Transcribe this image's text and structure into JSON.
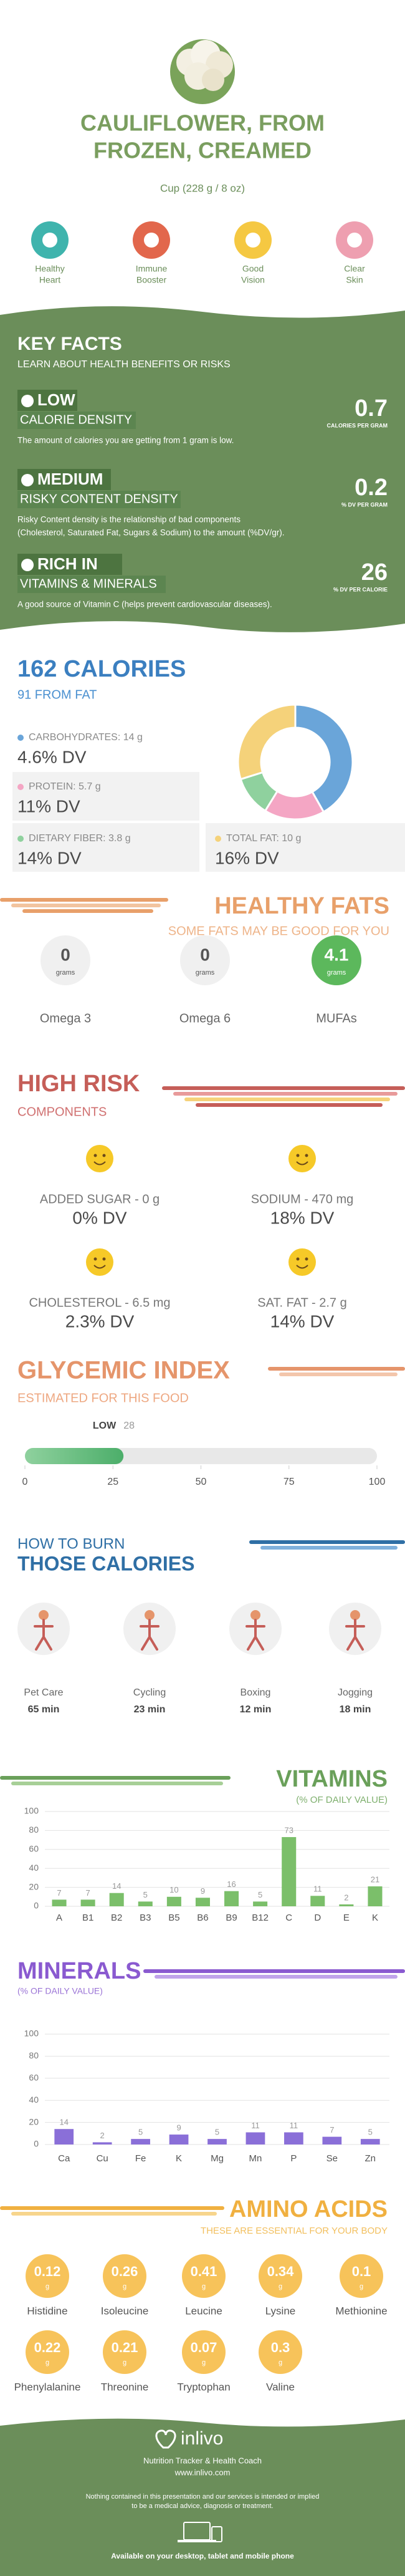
{
  "header": {
    "title": [
      "CAULIFLOWER, FROM",
      "FROZEN, CREAMED"
    ],
    "serving": "Cup (228 g / 8 oz)"
  },
  "benefits": [
    [
      "Healthy",
      "Heart"
    ],
    [
      "Immune",
      "Booster"
    ],
    [
      "Good",
      "Vision"
    ],
    [
      "Clear",
      "Skin"
    ]
  ],
  "key_facts": {
    "title": "KEY FACTS",
    "subtitle": "LEARN ABOUT HEALTH BENEFITS OR RISKS",
    "items": [
      {
        "level": "LOW",
        "name": "CALORIE DENSITY",
        "value": 0.7,
        "unit": "CALORIES PER GRAM",
        "description": [
          "The amount of calories you are getting from 1 gram is low."
        ]
      },
      {
        "level": "MEDIUM",
        "name": "RISKY CONTENT DENSITY",
        "value": 0.2,
        "unit": "% DV PER GRAM",
        "description": [
          "Risky Content density is the relationship of bad components",
          "(Cholesterol, Saturated Fat, Sugars & Sodium) to the amount (%DV/gr)."
        ]
      },
      {
        "level": "RICH IN",
        "name": "VITAMINS & MINERALS",
        "value": 26,
        "unit": "% DV PER CALORIE",
        "description": [
          "A good source of Vitamin C (helps prevent cardiovascular diseases)."
        ]
      }
    ]
  },
  "calories": {
    "title": "162 CALORIES",
    "subtitle": "91 FROM FAT",
    "nutrients": [
      {
        "name": "CARBOHYDRATES: 14 g",
        "grams": 14,
        "dv": "4.6% DV",
        "color": "#6aa5d9"
      },
      {
        "name": "PROTEIN: 5.7 g",
        "grams": 5.7,
        "dv": "11% DV",
        "color": "#f4a6c4"
      },
      {
        "name": "DIETARY FIBER: 3.8 g",
        "grams": 3.8,
        "dv": "14% DV",
        "color": "#8fd19e"
      },
      {
        "name": "TOTAL FAT: 10 g",
        "grams": 10,
        "dv": "16% DV",
        "color": "#f5d27a"
      }
    ]
  },
  "healthy_fats": {
    "title": "HEALTHY FATS",
    "subtitle": "SOME FATS MAY BE GOOD FOR YOU",
    "items": [
      {
        "name": "Omega 3",
        "value": 0,
        "unit": "grams"
      },
      {
        "name": "Omega 6",
        "value": 0,
        "unit": "grams"
      },
      {
        "name": "MUFAs",
        "value": 4.1,
        "unit": "grams"
      }
    ]
  },
  "high_risk": {
    "title": "HIGH RISK",
    "subtitle": "COMPONENTS",
    "items": [
      {
        "name": "ADDED SUGAR - 0 g",
        "dv": "0% DV"
      },
      {
        "name": "SODIUM - 470 mg",
        "dv": "18% DV"
      },
      {
        "name": "CHOLESTEROL - 6.5 mg",
        "dv": "2.3% DV"
      },
      {
        "name": "SAT. FAT - 2.7 g",
        "dv": "14% DV"
      }
    ]
  },
  "glycemic_index": {
    "title": "GLYCEMIC INDEX",
    "subtitle": "ESTIMATED FOR THIS FOOD",
    "level": "LOW",
    "value": 28,
    "xlim": [
      0,
      100
    ],
    "xticks": [
      0,
      25,
      50,
      75,
      100
    ]
  },
  "burn": {
    "title": [
      "HOW TO BURN",
      "THOSE CALORIES"
    ],
    "activities": [
      {
        "name": "Pet Care",
        "time": "65 min"
      },
      {
        "name": "Cycling",
        "time": "23 min"
      },
      {
        "name": "Boxing",
        "time": "12 min"
      },
      {
        "name": "Jogging",
        "time": "18 min"
      }
    ]
  },
  "vitamins": {
    "title": "VITAMINS",
    "subtitle": "(% OF DAILY VALUE)",
    "categories": [
      "A",
      "B1",
      "B2",
      "B3",
      "B5",
      "B6",
      "B9",
      "B12",
      "C",
      "D",
      "E",
      "K"
    ],
    "values": [
      7,
      7,
      14,
      5,
      10,
      9,
      16,
      5,
      73,
      11,
      2,
      21
    ],
    "ylim": [
      0,
      100
    ],
    "yticks": [
      0,
      20,
      40,
      60,
      80,
      100
    ],
    "color": "#7bbf6a"
  },
  "minerals": {
    "title": "MINERALS",
    "subtitle": "(% OF DAILY VALUE)",
    "categories": [
      "Ca",
      "Cu",
      "Fe",
      "K",
      "Mg",
      "Mn",
      "P",
      "Se",
      "Zn"
    ],
    "values": [
      14,
      2,
      5,
      9,
      5,
      11,
      11,
      7,
      5
    ],
    "ylim": [
      0,
      100
    ],
    "yticks": [
      0,
      20,
      40,
      60,
      80,
      100
    ],
    "color": "#8a6fd8"
  },
  "amino_acids": {
    "title": "AMINO ACIDS",
    "subtitle": "THESE ARE ESSENTIAL FOR YOUR BODY",
    "unit": "g",
    "items": [
      {
        "name": "Histidine",
        "value": 0.12
      },
      {
        "name": "Isoleucine",
        "value": 0.26
      },
      {
        "name": "Leucine",
        "value": 0.41
      },
      {
        "name": "Lysine",
        "value": 0.34
      },
      {
        "name": "Methionine",
        "value": 0.1
      },
      {
        "name": "Phenylalanine",
        "value": 0.22
      },
      {
        "name": "Threonine",
        "value": 0.21
      },
      {
        "name": "Tryptophan",
        "value": 0.07
      },
      {
        "name": "Valine",
        "value": 0.3
      }
    ]
  },
  "footer": {
    "brand": "inlivo",
    "tagline": "Nutrition Tracker & Health Coach",
    "url": "www.inlivo.com",
    "disclaimer": [
      "Nothing contained in this presentation and our services is intended or implied",
      "to be a medical advice, diagnosis or treatment."
    ],
    "availability": "Available on your desktop, tablet and mobile phone"
  }
}
